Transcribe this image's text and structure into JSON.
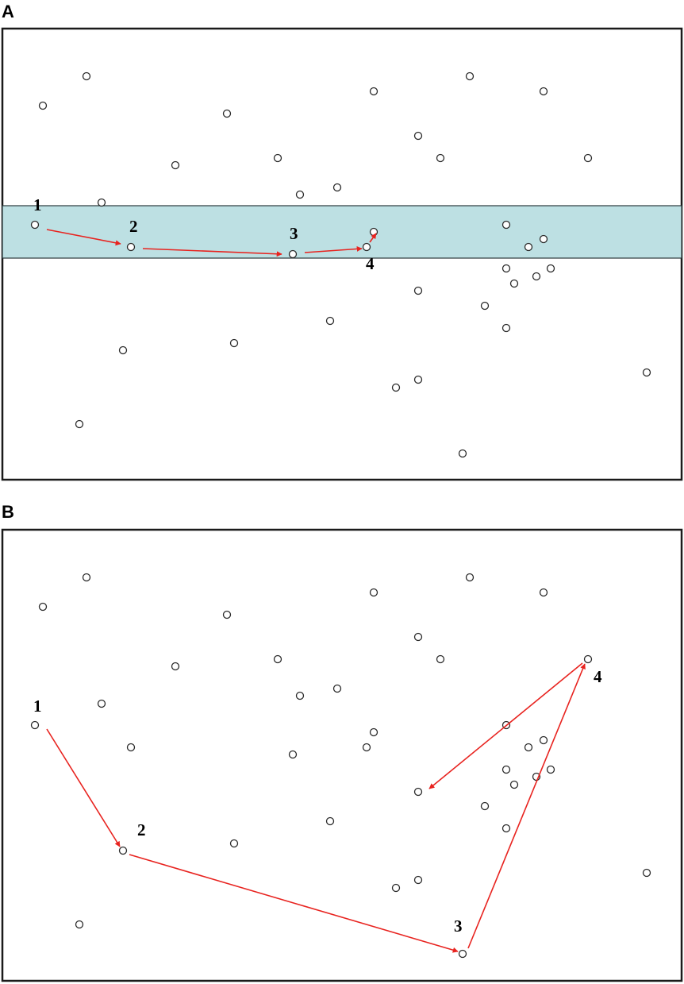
{
  "panels": [
    {
      "label": "A",
      "has_band": true,
      "numbers": [
        "1",
        "2",
        "3",
        "4"
      ]
    },
    {
      "label": "B",
      "has_band": false,
      "numbers": [
        "1",
        "2",
        "3",
        "4"
      ]
    }
  ],
  "colors": {
    "band": "#bde0e3",
    "arrow": "#e8231f",
    "frame": "#1a1a1a"
  }
}
